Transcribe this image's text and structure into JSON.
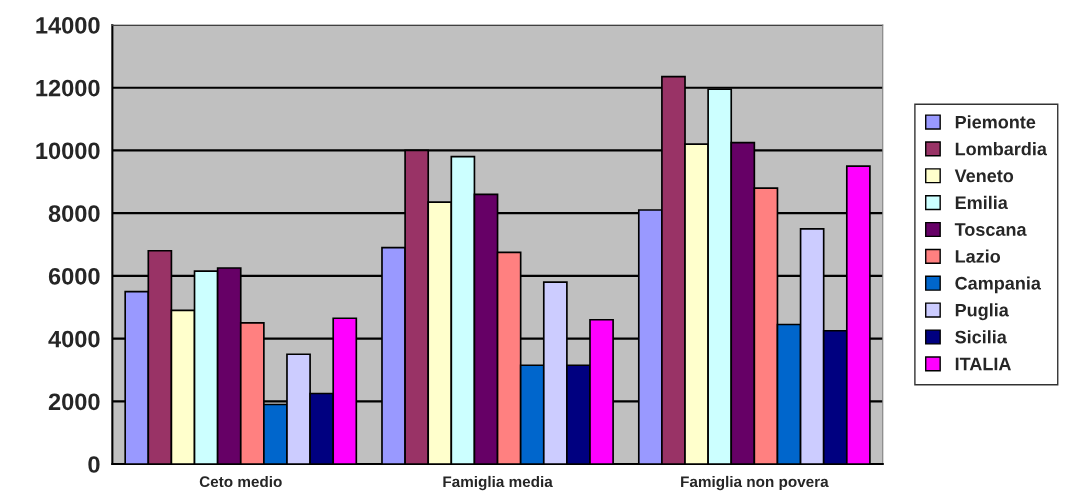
{
  "chart_data": {
    "type": "bar",
    "categories": [
      "Ceto medio",
      "Famiglia media",
      "Famiglia non povera"
    ],
    "series": [
      {
        "name": "Piemonte",
        "color": "#9999ff",
        "values": [
          5500,
          6900,
          8100
        ]
      },
      {
        "name": "Lombardia",
        "color": "#993366",
        "values": [
          6800,
          10000,
          12350
        ]
      },
      {
        "name": "Veneto",
        "color": "#ffffcc",
        "values": [
          4900,
          8350,
          10200
        ]
      },
      {
        "name": "Emilia",
        "color": "#ccffff",
        "values": [
          6150,
          9800,
          11950
        ]
      },
      {
        "name": "Toscana",
        "color": "#660066",
        "values": [
          6250,
          8600,
          10250
        ]
      },
      {
        "name": "Lazio",
        "color": "#ff8080",
        "values": [
          4500,
          6750,
          8800
        ]
      },
      {
        "name": "Campania",
        "color": "#0066cc",
        "values": [
          1900,
          3150,
          4450
        ]
      },
      {
        "name": "Puglia",
        "color": "#ccccff",
        "values": [
          3500,
          5800,
          7500
        ]
      },
      {
        "name": "Sicilia",
        "color": "#000080",
        "values": [
          2250,
          3150,
          4250
        ]
      },
      {
        "name": "ITALIA",
        "color": "#ff00ff",
        "values": [
          4650,
          4600,
          9500
        ]
      }
    ],
    "ylim": [
      0,
      14000
    ],
    "yticks": [
      0,
      2000,
      4000,
      6000,
      8000,
      10000,
      12000,
      14000
    ],
    "grid": "y",
    "legend": "right"
  }
}
